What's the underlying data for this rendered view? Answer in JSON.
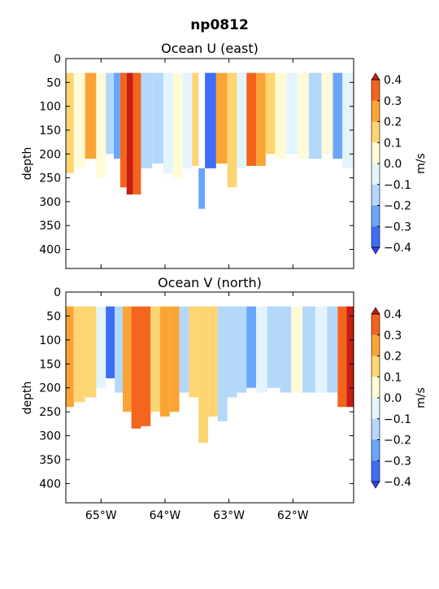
{
  "figure_title": "np0812",
  "colors": {
    "levels": [
      -0.4,
      -0.3,
      -0.2,
      -0.1,
      0.0,
      0.1,
      0.2,
      0.3,
      0.4
    ],
    "bins": [
      "#3d3df0",
      "#3f6ef5",
      "#6aa6f8",
      "#b3d8fa",
      "#e3f4fd",
      "#fffbd6",
      "#fdd572",
      "#fba436",
      "#f3641d",
      "#c71d12"
    ]
  },
  "chart_data": [
    {
      "type": "heatmap",
      "title": "Ocean U (east)",
      "xlabel": "",
      "ylabel": "depth",
      "colorbar_label": "m/s",
      "colorbar_ticks": [
        "0.4",
        "0.3",
        "0.2",
        "0.1",
        "0.0",
        "−0.1",
        "−0.2",
        "−0.3",
        "−0.4"
      ],
      "xlim": [
        -65.55,
        -61.05
      ],
      "ylim": [
        440,
        0
      ],
      "yticks": [
        "0",
        "50",
        "100",
        "150",
        "200",
        "250",
        "300",
        "350",
        "400"
      ],
      "xticks": [],
      "profiles": [
        {
          "lon": -65.5,
          "top": 30,
          "bottom": 240,
          "value": 0.16
        },
        {
          "lon": -65.35,
          "top": 30,
          "bottom": 230,
          "value": 0.05
        },
        {
          "lon": -65.15,
          "top": 30,
          "bottom": 210,
          "value": 0.2
        },
        {
          "lon": -65.0,
          "top": 30,
          "bottom": 250,
          "value": 0.08
        },
        {
          "lon": -64.85,
          "top": 30,
          "bottom": 200,
          "value": -0.15
        },
        {
          "lon": -64.75,
          "top": 30,
          "bottom": 210,
          "value": -0.25
        },
        {
          "lon": -64.65,
          "top": 30,
          "bottom": 270,
          "value": 0.3
        },
        {
          "lon": -64.55,
          "top": 30,
          "bottom": 285,
          "value": 0.42
        },
        {
          "lon": -64.45,
          "top": 30,
          "bottom": 285,
          "value": 0.33
        },
        {
          "lon": -64.3,
          "top": 30,
          "bottom": 230,
          "value": -0.12
        },
        {
          "lon": -64.1,
          "top": 30,
          "bottom": 220,
          "value": -0.2
        },
        {
          "lon": -63.95,
          "top": 30,
          "bottom": 240,
          "value": -0.1
        },
        {
          "lon": -63.8,
          "top": 30,
          "bottom": 250,
          "value": 0.05
        },
        {
          "lon": -63.65,
          "top": 30,
          "bottom": 230,
          "value": -0.06
        },
        {
          "lon": -63.5,
          "top": 30,
          "bottom": 225,
          "value": 0.12
        },
        {
          "lon": -63.45,
          "top": 230,
          "bottom": 315,
          "value": -0.28
        },
        {
          "lon": -63.3,
          "top": 30,
          "bottom": 230,
          "value": -0.35
        },
        {
          "lon": -63.1,
          "top": 30,
          "bottom": 220,
          "value": 0.25
        },
        {
          "lon": -62.95,
          "top": 30,
          "bottom": 270,
          "value": 0.1
        },
        {
          "lon": -62.8,
          "top": 30,
          "bottom": 230,
          "value": -0.08
        },
        {
          "lon": -62.65,
          "top": 30,
          "bottom": 225,
          "value": 0.38
        },
        {
          "lon": -62.5,
          "top": 30,
          "bottom": 225,
          "value": 0.25
        },
        {
          "lon": -62.35,
          "top": 30,
          "bottom": 200,
          "value": 0.18
        },
        {
          "lon": -62.2,
          "top": 30,
          "bottom": 210,
          "value": 0.06
        },
        {
          "lon": -62.0,
          "top": 30,
          "bottom": 200,
          "value": -0.05
        },
        {
          "lon": -61.85,
          "top": 30,
          "bottom": 210,
          "value": 0.08
        },
        {
          "lon": -61.65,
          "top": 30,
          "bottom": 210,
          "value": -0.12
        },
        {
          "lon": -61.45,
          "top": 30,
          "bottom": 200,
          "value": 0.07
        },
        {
          "lon": -61.3,
          "top": 30,
          "bottom": 210,
          "value": -0.22
        },
        {
          "lon": -61.15,
          "top": 30,
          "bottom": 230,
          "value": -0.1
        }
      ]
    },
    {
      "type": "heatmap",
      "title": "Ocean V (north)",
      "xlabel": "",
      "ylabel": "depth",
      "colorbar_label": "m/s",
      "colorbar_ticks": [
        "0.4",
        "0.3",
        "0.2",
        "0.1",
        "0.0",
        "−0.1",
        "−0.2",
        "−0.3",
        "−0.4"
      ],
      "xlim": [
        -65.55,
        -61.05
      ],
      "ylim": [
        440,
        0
      ],
      "yticks": [
        "0",
        "50",
        "100",
        "150",
        "200",
        "250",
        "300",
        "350",
        "400"
      ],
      "xticks": [
        "65°W",
        "64°W",
        "63°W",
        "62°W"
      ],
      "profiles": [
        {
          "lon": -65.5,
          "top": 30,
          "bottom": 240,
          "value": 0.22
        },
        {
          "lon": -65.35,
          "top": 30,
          "bottom": 230,
          "value": 0.15
        },
        {
          "lon": -65.15,
          "top": 30,
          "bottom": 220,
          "value": 0.12
        },
        {
          "lon": -65.0,
          "top": 30,
          "bottom": 200,
          "value": -0.08
        },
        {
          "lon": -64.85,
          "top": 30,
          "bottom": 180,
          "value": -0.35
        },
        {
          "lon": -64.72,
          "top": 30,
          "bottom": 210,
          "value": -0.15
        },
        {
          "lon": -64.6,
          "top": 30,
          "bottom": 250,
          "value": 0.22
        },
        {
          "lon": -64.45,
          "top": 30,
          "bottom": 285,
          "value": 0.32
        },
        {
          "lon": -64.3,
          "top": 30,
          "bottom": 280,
          "value": 0.3
        },
        {
          "lon": -64.15,
          "top": 30,
          "bottom": 250,
          "value": 0.18
        },
        {
          "lon": -64.0,
          "top": 30,
          "bottom": 260,
          "value": 0.25
        },
        {
          "lon": -63.85,
          "top": 30,
          "bottom": 250,
          "value": 0.2
        },
        {
          "lon": -63.7,
          "top": 30,
          "bottom": 210,
          "value": -0.12
        },
        {
          "lon": -63.55,
          "top": 30,
          "bottom": 220,
          "value": 0.15
        },
        {
          "lon": -63.4,
          "top": 30,
          "bottom": 315,
          "value": 0.18
        },
        {
          "lon": -63.25,
          "top": 30,
          "bottom": 260,
          "value": 0.12
        },
        {
          "lon": -63.1,
          "top": 30,
          "bottom": 270,
          "value": -0.12
        },
        {
          "lon": -62.95,
          "top": 30,
          "bottom": 220,
          "value": -0.18
        },
        {
          "lon": -62.8,
          "top": 30,
          "bottom": 210,
          "value": -0.12
        },
        {
          "lon": -62.65,
          "top": 30,
          "bottom": 200,
          "value": -0.25
        },
        {
          "lon": -62.5,
          "top": 30,
          "bottom": 210,
          "value": -0.1
        },
        {
          "lon": -62.3,
          "top": 30,
          "bottom": 200,
          "value": -0.15
        },
        {
          "lon": -62.1,
          "top": 30,
          "bottom": 210,
          "value": -0.2
        },
        {
          "lon": -61.95,
          "top": 30,
          "bottom": 210,
          "value": 0.05
        },
        {
          "lon": -61.75,
          "top": 30,
          "bottom": 210,
          "value": -0.12
        },
        {
          "lon": -61.55,
          "top": 30,
          "bottom": 210,
          "value": -0.08
        },
        {
          "lon": -61.38,
          "top": 30,
          "bottom": 210,
          "value": -0.15
        },
        {
          "lon": -61.22,
          "top": 30,
          "bottom": 240,
          "value": 0.35
        },
        {
          "lon": -61.1,
          "top": 30,
          "bottom": 240,
          "value": 0.42
        }
      ]
    }
  ]
}
